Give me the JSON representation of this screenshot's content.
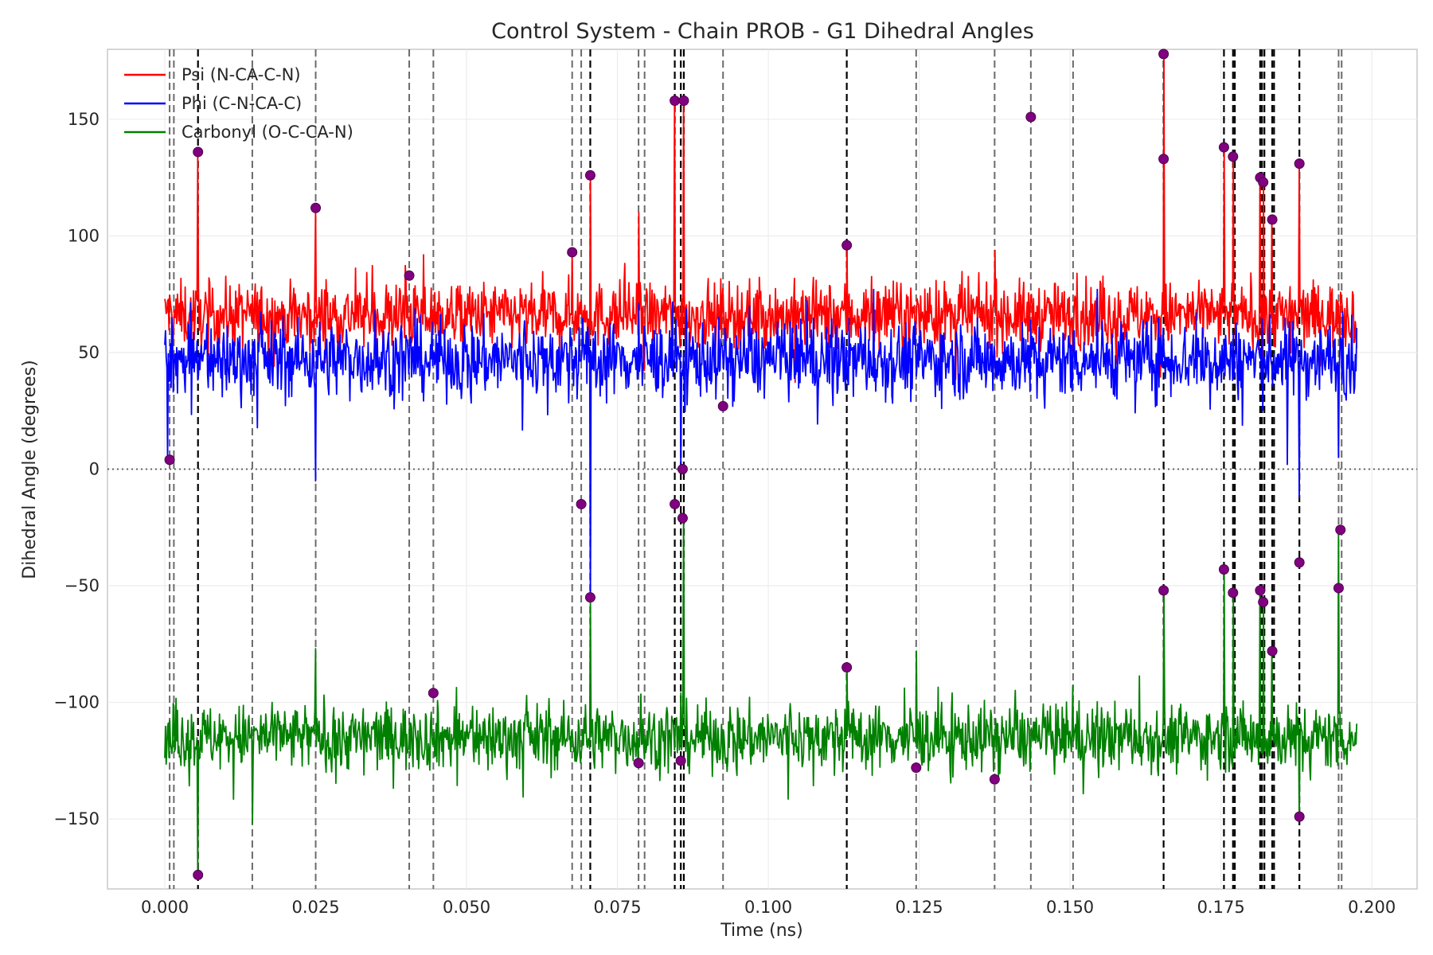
{
  "chart_data": {
    "type": "line",
    "title": "Control System - Chain PROB - G1 Dihedral Angles",
    "xlabel": "Time (ns)",
    "ylabel": "Dihedral Angle (degrees)",
    "xlim": [
      -0.0095,
      0.2075
    ],
    "ylim": [
      -180,
      180
    ],
    "x_ticks": [
      0.0,
      0.025,
      0.05,
      0.075,
      0.1,
      0.125,
      0.15,
      0.175,
      0.2
    ],
    "x_tick_labels": [
      "0.000",
      "0.025",
      "0.050",
      "0.075",
      "0.100",
      "0.125",
      "0.150",
      "0.175",
      "0.200"
    ],
    "y_ticks": [
      -150,
      -100,
      -50,
      0,
      50,
      100,
      150
    ],
    "y_tick_labels": [
      "−150",
      "−100",
      "−50",
      "0",
      "50",
      "100",
      "150"
    ],
    "grid": true,
    "legend_position": "top-left",
    "time_range_ns": [
      0.0,
      0.1975
    ],
    "zero_line": 0,
    "series": [
      {
        "name": "Psi (N-CA-C-N)",
        "color": "#ff0000",
        "mean": 66,
        "noise": 7,
        "spikes": [
          [
            0.0005,
            72
          ],
          [
            0.0055,
            136
          ],
          [
            0.025,
            112
          ],
          [
            0.04,
            80
          ],
          [
            0.0675,
            93
          ],
          [
            0.0705,
            126
          ],
          [
            0.0785,
            110
          ],
          [
            0.0845,
            158
          ],
          [
            0.086,
            158
          ],
          [
            0.113,
            96
          ],
          [
            0.1655,
            133
          ],
          [
            0.1655,
            178
          ],
          [
            0.1755,
            138
          ],
          [
            0.177,
            134
          ],
          [
            0.1815,
            125
          ],
          [
            0.182,
            123
          ],
          [
            0.1835,
            107
          ],
          [
            0.188,
            131
          ]
        ]
      },
      {
        "name": "Phi (C-N-CA-C)",
        "color": "#0000ff",
        "mean": 47,
        "noise": 8,
        "spikes": [
          [
            0.0005,
            4
          ],
          [
            0.025,
            -5
          ],
          [
            0.0705,
            -55
          ],
          [
            0.0855,
            1
          ],
          [
            0.186,
            2
          ],
          [
            0.188,
            -12
          ],
          [
            0.1945,
            5
          ]
        ]
      },
      {
        "name": "Carbonyl (O-C-CA-N)",
        "color": "#008000",
        "mean": -115,
        "noise": 7,
        "spikes": [
          [
            0.0055,
            -174
          ],
          [
            0.0145,
            -152
          ],
          [
            0.025,
            -77
          ],
          [
            0.0705,
            -55
          ],
          [
            0.086,
            -20
          ],
          [
            0.113,
            -85
          ],
          [
            0.1245,
            -78
          ],
          [
            0.1655,
            -52
          ],
          [
            0.1755,
            -43
          ],
          [
            0.177,
            -53
          ],
          [
            0.1815,
            -52
          ],
          [
            0.182,
            -57
          ],
          [
            0.1835,
            -78
          ],
          [
            0.188,
            -149
          ],
          [
            0.1945,
            -26
          ]
        ]
      }
    ],
    "transition_points": {
      "color": "#800080",
      "points": [
        [
          0.0008,
          4
        ],
        [
          0.0055,
          136
        ],
        [
          0.0055,
          -174
        ],
        [
          0.025,
          112
        ],
        [
          0.0405,
          83
        ],
        [
          0.0445,
          -96
        ],
        [
          0.0675,
          93
        ],
        [
          0.069,
          -15
        ],
        [
          0.0705,
          126
        ],
        [
          0.0705,
          -55
        ],
        [
          0.0785,
          -126
        ],
        [
          0.0845,
          158
        ],
        [
          0.0845,
          -15
        ],
        [
          0.0855,
          -125
        ],
        [
          0.0858,
          0
        ],
        [
          0.0858,
          -21
        ],
        [
          0.086,
          158
        ],
        [
          0.0925,
          27
        ],
        [
          0.113,
          96
        ],
        [
          0.113,
          -85
        ],
        [
          0.1245,
          -128
        ],
        [
          0.1375,
          -133
        ],
        [
          0.1435,
          151
        ],
        [
          0.1655,
          178
        ],
        [
          0.1655,
          133
        ],
        [
          0.1655,
          -52
        ],
        [
          0.1755,
          138
        ],
        [
          0.1755,
          -43
        ],
        [
          0.177,
          134
        ],
        [
          0.177,
          -53
        ],
        [
          0.1815,
          125
        ],
        [
          0.1815,
          -52
        ],
        [
          0.182,
          123
        ],
        [
          0.182,
          -57
        ],
        [
          0.1835,
          107
        ],
        [
          0.1835,
          -78
        ],
        [
          0.188,
          131
        ],
        [
          0.188,
          -40
        ],
        [
          0.188,
          -149
        ],
        [
          0.1945,
          -51
        ],
        [
          0.1948,
          -26
        ]
      ]
    },
    "transition_lines": {
      "gray_x": [
        0.0008,
        0.0015,
        0.0145,
        0.025,
        0.0405,
        0.0445,
        0.0675,
        0.069,
        0.0785,
        0.0795,
        0.0925,
        0.1245,
        0.1375,
        0.1435,
        0.1505,
        0.1945,
        0.195
      ],
      "black_x": [
        0.0055,
        0.0705,
        0.0845,
        0.0855,
        0.086,
        0.113,
        0.1655,
        0.1755,
        0.177,
        0.1773,
        0.1815,
        0.1818,
        0.1822,
        0.1835,
        0.1838,
        0.188
      ]
    }
  }
}
